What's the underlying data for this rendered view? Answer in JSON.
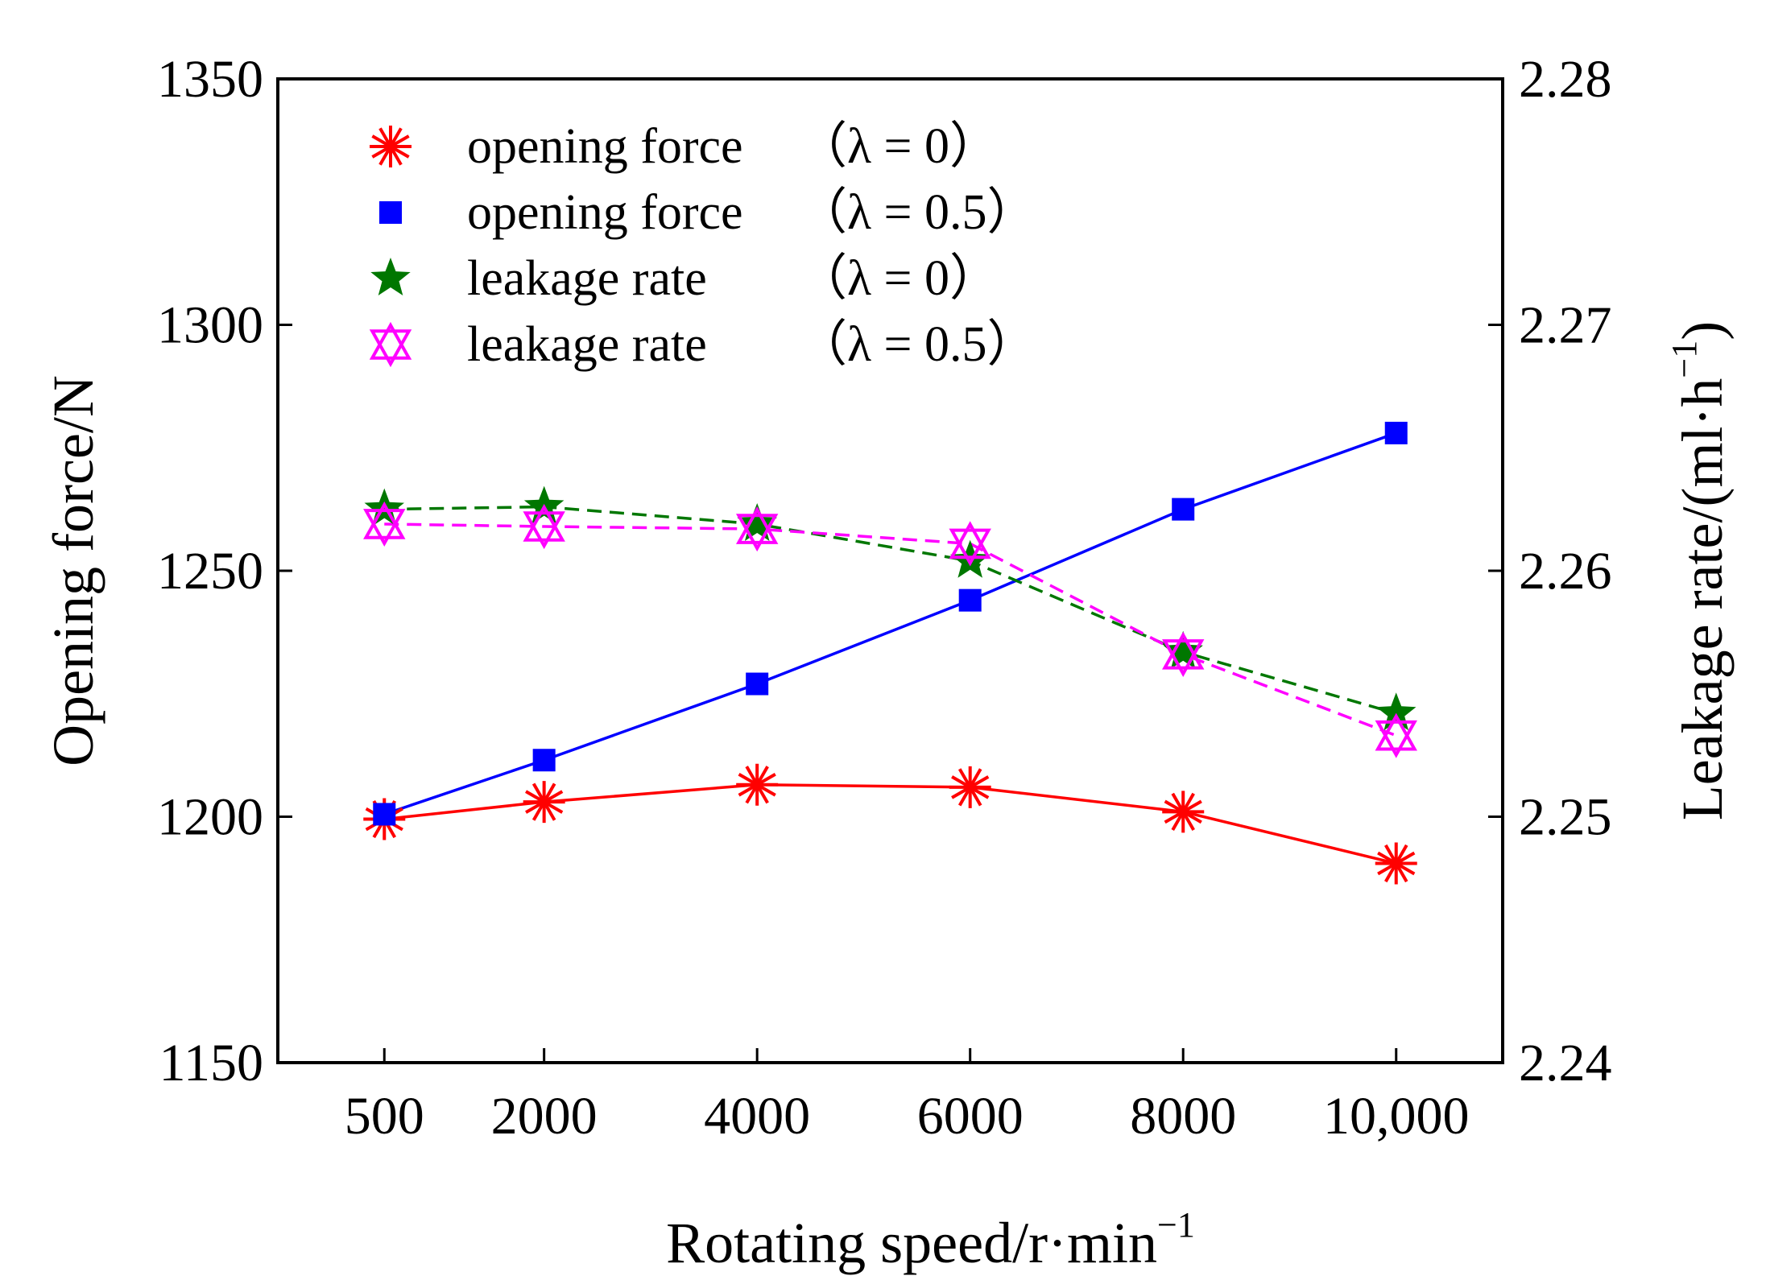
{
  "chart_data": {
    "type": "line",
    "xlabel_main": "Rotating speed/r·min",
    "xlabel_sup": "−1",
    "ylabel_left": "Opening force/N",
    "ylabel_right_main": "Leakage rate/(ml·h",
    "ylabel_right_sup": "−1",
    "ylabel_right_end": ")",
    "categories": [
      "500",
      "2000",
      "4000",
      "6000",
      "8000",
      "10,000"
    ],
    "x": [
      500,
      2000,
      4000,
      6000,
      8000,
      10000
    ],
    "xlim": [
      -500,
      11000
    ],
    "ylim_left": [
      1150,
      1350
    ],
    "yticks_left": [
      "1150",
      "1200",
      "1250",
      "1300",
      "1350"
    ],
    "ylim_right": [
      2.24,
      2.28
    ],
    "yticks_right": [
      "2.24",
      "2.25",
      "2.26",
      "2.27",
      "2.28"
    ],
    "series": [
      {
        "name": "opening force",
        "lambda": "（λ = 0）",
        "axis": "left",
        "color": "#ff0000",
        "dash": "solid",
        "marker": "asterisk",
        "values": [
          1199.5,
          1203,
          1206.5,
          1206,
          1201,
          1190.5
        ]
      },
      {
        "name": "opening force",
        "lambda": "（λ = 0.5）",
        "axis": "left",
        "color": "#0000ff",
        "dash": "solid",
        "marker": "square",
        "values": [
          1200.5,
          1211.5,
          1227,
          1244,
          1262.5,
          1278
        ]
      },
      {
        "name": "leakage rate",
        "lambda": "（λ = 0）",
        "axis": "right",
        "color": "#007700",
        "dash": "dashed",
        "marker": "star",
        "values": [
          2.2625,
          2.2626,
          2.2619,
          2.2604,
          2.2567,
          2.2542
        ]
      },
      {
        "name": "leakage rate",
        "lambda": "（λ = 0.5）",
        "axis": "right",
        "color": "#ff00ff",
        "dash": "dashed",
        "marker": "double-triangle",
        "values": [
          2.2619,
          2.2618,
          2.2617,
          2.2611,
          2.2566,
          2.2533
        ]
      }
    ]
  }
}
